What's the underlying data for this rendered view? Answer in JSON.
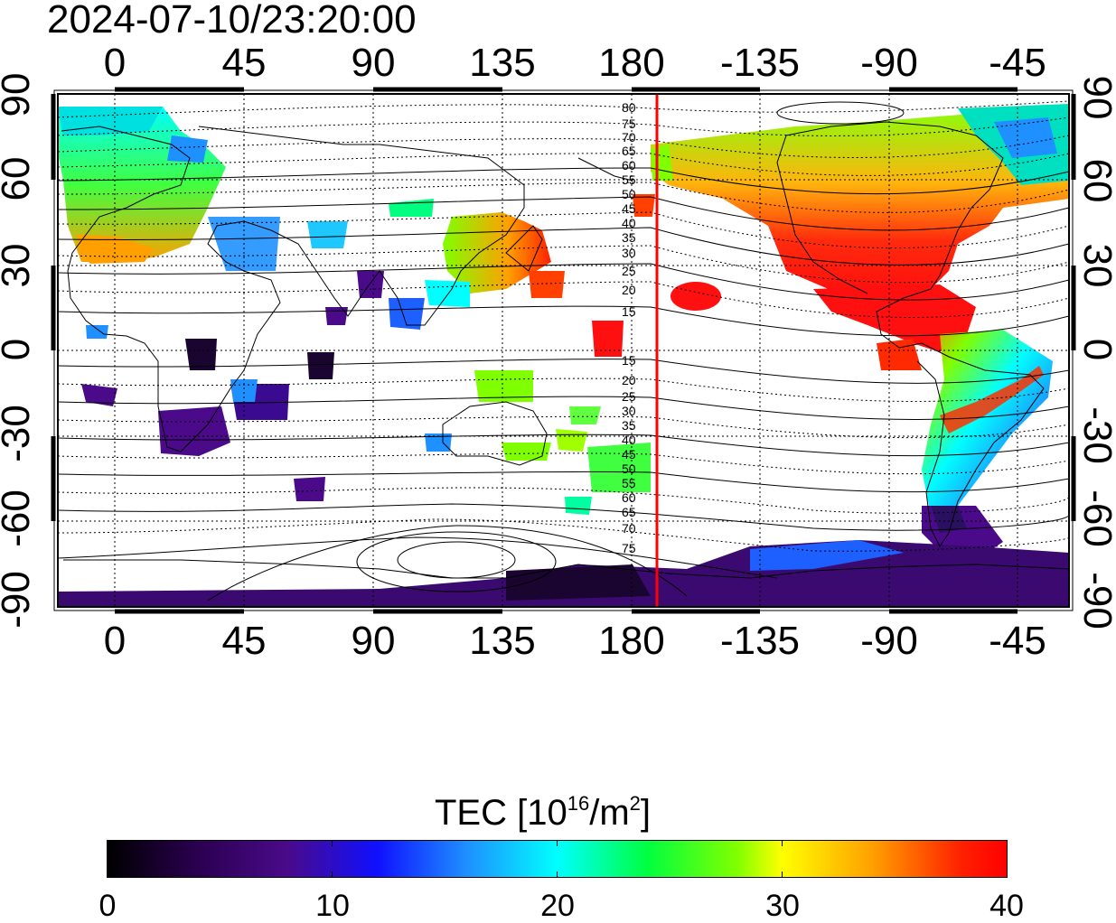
{
  "timestamp": "2024-07-10/23:20:00",
  "axes": {
    "top_lon_labels": [
      "0",
      "45",
      "90",
      "135",
      "180",
      "-135",
      "-90",
      "-45"
    ],
    "bottom_lon_labels": [
      "0",
      "45",
      "90",
      "135",
      "180",
      "-135",
      "-90",
      "-45"
    ],
    "left_lat_labels": [
      "90",
      "60",
      "30",
      "0",
      "-30",
      "-60",
      "-90"
    ],
    "right_lat_labels": [
      "90",
      "60",
      "30",
      "0",
      "-30",
      "-60",
      "-90"
    ]
  },
  "map": {
    "projection": "equirectangular",
    "lon_range": [
      -20,
      335
    ],
    "lat_range": [
      -90,
      90
    ],
    "grid": true,
    "red_meridian_lon": 190,
    "red_meridian_color": "#ff0000",
    "contour_labels_north": [
      "80",
      "75",
      "70",
      "65",
      "60",
      "55",
      "50",
      "45",
      "40",
      "35",
      "30",
      "25",
      "20",
      "15"
    ],
    "contour_labels_south": [
      "15",
      "20",
      "25",
      "30",
      "35",
      "40",
      "45",
      "50",
      "55",
      "60",
      "65",
      "70",
      "75"
    ]
  },
  "colorbar": {
    "title_text": "TEC  [10",
    "title_exp": "16",
    "title_unit": "/m",
    "title_unit_exp": "2",
    "title_close": "]",
    "min": 0,
    "max": 40,
    "tick_labels": [
      "0",
      "10",
      "20",
      "30",
      "40"
    ],
    "colors": [
      "#000000",
      "#4a0a8a",
      "#1010ff",
      "#00ffff",
      "#00ff40",
      "#ffff00",
      "#ff0000"
    ]
  }
}
